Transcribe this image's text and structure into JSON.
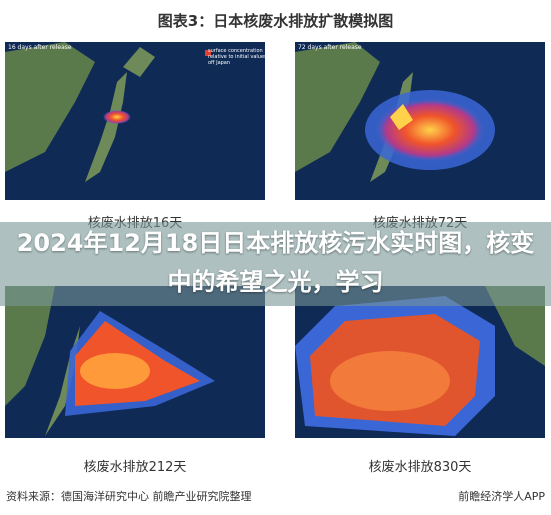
{
  "header": {
    "title": "图表3：日本核废水排放扩散模拟图"
  },
  "panels": [
    {
      "label": "核废水排放16天",
      "caption": "16 days after release"
    },
    {
      "label": "核废水排放72天",
      "caption": "72 days after release"
    },
    {
      "label": "核废水排放212天"
    },
    {
      "label": "核废水排放830天"
    }
  ],
  "legend_note": "surface concentration relative to initial values off Japan",
  "overlay": {
    "title": "2024年12月18日日本排放核污水实时图，核变中的希望之光，学习"
  },
  "footer": {
    "source": "资料来源：德国海洋研究中心 前瞻产业研究院整理",
    "brand": "前瞻经济学人APP"
  }
}
